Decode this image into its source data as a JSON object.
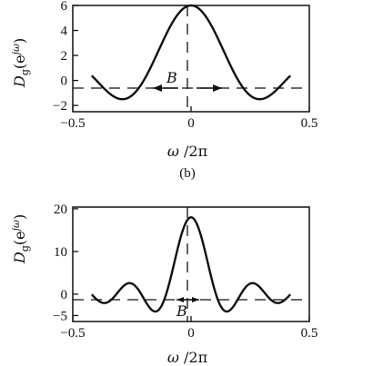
{
  "chart_data": [
    {
      "type": "line",
      "x_range": [
        -0.42,
        0.42
      ],
      "xlim": [
        -0.5,
        0.5
      ],
      "ylim": [
        -2,
        6
      ],
      "xticks": [
        -0.5,
        0,
        0.5
      ],
      "xtick_labels": [
        "−0.5",
        "0",
        "0.5"
      ],
      "yticks": [
        -2,
        0,
        2,
        4,
        6
      ],
      "ytick_labels": [
        "−2",
        "0",
        "2",
        "4",
        "6"
      ],
      "xlabel": "ω /2π",
      "ylabel": "D_g(e^{jω})",
      "annotation": "B",
      "panel_label": "(b)",
      "grid": false,
      "series": [
        {
          "peak": 6,
          "zero_spacing": 0.1,
          "note": "Dirichlet-like kernel, main lobe width B between arrows"
        }
      ],
      "dashed_lines": [
        "y = 0",
        "x = 0"
      ]
    },
    {
      "type": "line",
      "x_range": [
        -0.42,
        0.42
      ],
      "xlim": [
        -0.5,
        0.5
      ],
      "ylim": [
        -5,
        20
      ],
      "xticks": [
        -0.5,
        0,
        0.5
      ],
      "xtick_labels": [
        "−0.5",
        "0",
        "0.5"
      ],
      "yticks": [
        -5,
        0,
        10,
        20
      ],
      "ytick_labels": [
        "−5",
        "0",
        "10",
        "20"
      ],
      "xlabel": "ω /2π",
      "ylabel": "D_g(e^{jω})",
      "annotation": "B",
      "panel_label": "",
      "grid": false,
      "series": [
        {
          "peak": 18,
          "zero_spacing": 0.0526,
          "note": "narrower Dirichlet-like kernel"
        }
      ],
      "dashed_lines": [
        "y = 0",
        "x = 0"
      ]
    }
  ]
}
